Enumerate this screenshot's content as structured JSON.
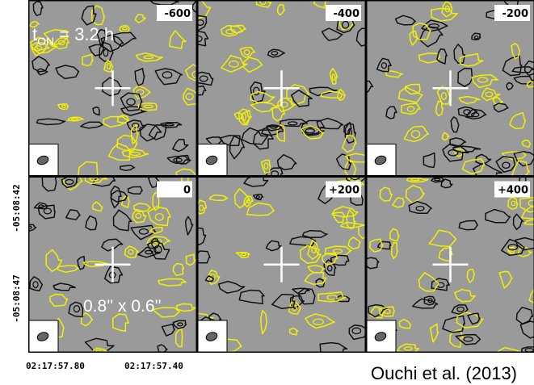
{
  "panels": [
    {
      "label": "-600"
    },
    {
      "label": "-400"
    },
    {
      "label": "-200"
    },
    {
      "label": "0"
    },
    {
      "label": "+200"
    },
    {
      "label": "+400"
    }
  ],
  "annotation": {
    "t": "t",
    "sub": "ON",
    "rest": " = 3.2 h"
  },
  "beam": "0.8'' x 0.6''",
  "y_labels": [
    "-05:08:42",
    "-05:08:47"
  ],
  "x_labels": [
    "02:17:57.80",
    "02:17:57.40"
  ],
  "credit": "Ouchi et al. (2013)"
}
